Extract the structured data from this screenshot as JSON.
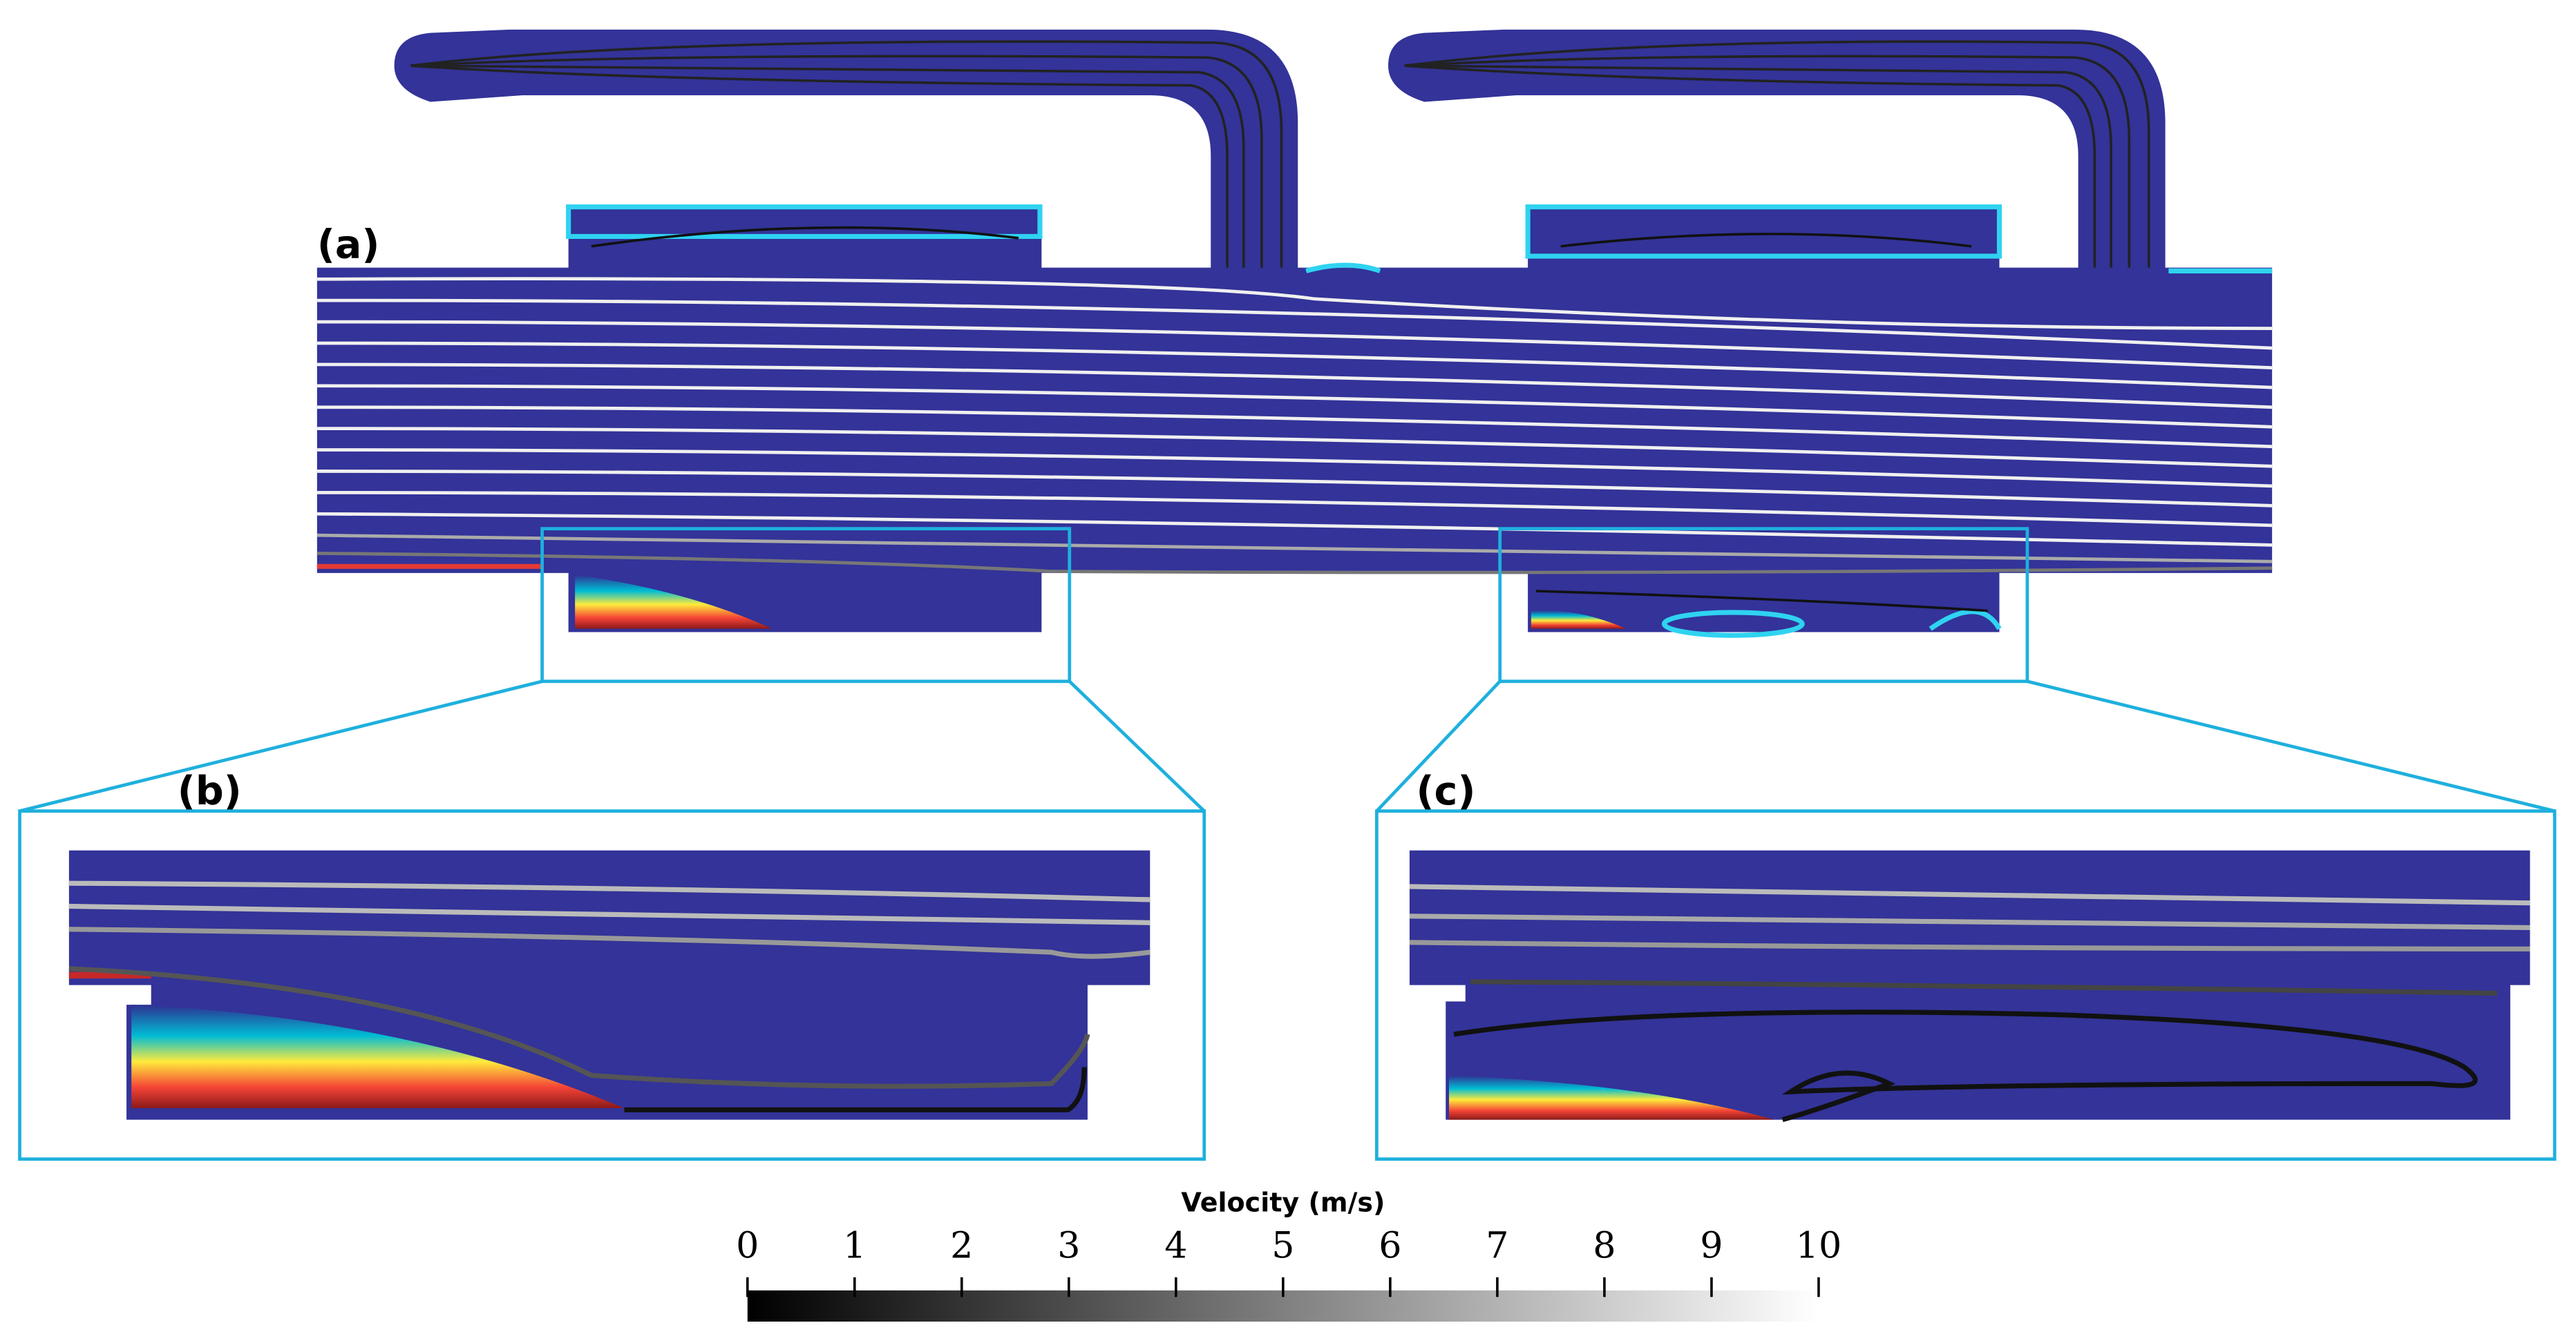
{
  "panels": [
    {
      "label": "(a)"
    },
    {
      "label": "(b)"
    },
    {
      "label": "(c)"
    }
  ],
  "colorbar": {
    "title": "Velocity (m/s)",
    "range": [
      0,
      10
    ],
    "ticks": [
      0,
      1,
      2,
      3,
      4,
      5,
      6,
      7,
      8,
      9,
      10
    ]
  }
}
